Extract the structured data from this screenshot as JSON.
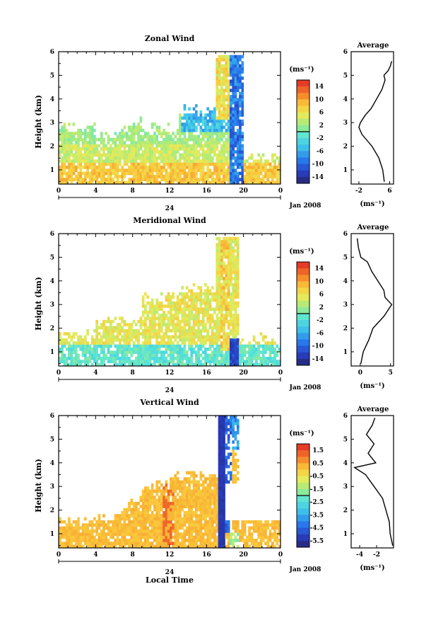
{
  "panels": [
    {
      "title": "Zonal Wind",
      "profile_title": "Average",
      "ylabel": "Height (km)",
      "units": "(ms⁻¹)",
      "date_label": "Jan 2008",
      "day_label": "24",
      "x_ticks": [
        "0",
        "4",
        "8",
        "12",
        "16",
        "20",
        "0"
      ],
      "y_ticks": [
        "1",
        "2",
        "3",
        "4",
        "5",
        "6"
      ],
      "colorbar_labels": [
        "14",
        "10",
        "6",
        "2",
        "-2",
        "-6",
        "-10",
        "-14"
      ],
      "profile_x_ticks": [
        "-2",
        "6"
      ]
    },
    {
      "title": "Meridional Wind",
      "profile_title": "Average",
      "ylabel": "Height (km)",
      "units": "(ms⁻¹)",
      "date_label": "Jan 2008",
      "day_label": "24",
      "x_ticks": [
        "0",
        "4",
        "8",
        "12",
        "16",
        "20",
        "0"
      ],
      "y_ticks": [
        "1",
        "2",
        "3",
        "4",
        "5",
        "6"
      ],
      "colorbar_labels": [
        "14",
        "10",
        "6",
        "2",
        "-2",
        "-6",
        "-10",
        "-14"
      ],
      "profile_x_ticks": [
        "0",
        "5"
      ]
    },
    {
      "title": "Vertical Wind",
      "profile_title": "Average",
      "ylabel": "Height (km)",
      "units": "(ms⁻¹)",
      "date_label": "Jan 2008",
      "day_label": "24",
      "x_ticks": [
        "0",
        "4",
        "8",
        "12",
        "16",
        "20",
        "0"
      ],
      "y_ticks": [
        "1",
        "2",
        "3",
        "4",
        "5",
        "6"
      ],
      "colorbar_labels": [
        "1.5",
        "0.5",
        "-0.5",
        "-1.5",
        "-2.5",
        "-3.5",
        "-4.5",
        "-5.5"
      ],
      "profile_x_ticks": [
        "-4",
        "-2"
      ],
      "xlabel": "Local Time"
    }
  ],
  "chart_data": [
    {
      "type": "heatmap",
      "title": "Zonal Wind",
      "xlabel": "",
      "ylabel": "Height (km)",
      "xlim": [
        0,
        24
      ],
      "ylim": [
        0.4,
        6
      ],
      "colorbar_range": [
        -16,
        16
      ],
      "colorbar_step": 4,
      "profile": {
        "title": "Average",
        "xlim": [
          -4,
          7
        ],
        "height": [
          0.5,
          1.0,
          1.5,
          2.0,
          2.5,
          2.8,
          3.0,
          3.3,
          3.6,
          4.0,
          4.4,
          4.8,
          5.0,
          5.2,
          5.4,
          5.6
        ],
        "value": [
          4.6,
          4.2,
          3.2,
          1.4,
          -1.2,
          -2.0,
          -1.6,
          -0.4,
          1.2,
          2.6,
          4.0,
          4.8,
          4.5,
          5.6,
          6.2,
          6.5
        ]
      }
    },
    {
      "type": "heatmap",
      "title": "Meridional Wind",
      "xlabel": "",
      "ylabel": "Height (km)",
      "xlim": [
        0,
        24
      ],
      "ylim": [
        0.4,
        6
      ],
      "colorbar_range": [
        -16,
        16
      ],
      "colorbar_step": 4,
      "profile": {
        "title": "Average",
        "xlim": [
          -1.5,
          5.5
        ],
        "height": [
          0.5,
          1.0,
          1.5,
          2.0,
          2.5,
          3.0,
          3.3,
          3.6,
          4.0,
          4.4,
          4.8,
          5.0,
          5.4,
          5.8
        ],
        "value": [
          0.1,
          0.5,
          1.4,
          2.1,
          3.9,
          5.2,
          4.1,
          3.9,
          2.9,
          1.9,
          1.2,
          0.1,
          -0.3,
          -0.5
        ]
      }
    },
    {
      "type": "heatmap",
      "title": "Vertical Wind",
      "xlabel": "Local Time",
      "ylabel": "Height (km)",
      "xlim": [
        0,
        24
      ],
      "ylim": [
        0.4,
        6
      ],
      "colorbar_range": [
        -6,
        2
      ],
      "colorbar_step": 1,
      "profile": {
        "title": "Average",
        "xlim": [
          -5,
          0
        ],
        "height": [
          0.5,
          1.0,
          1.5,
          2.0,
          2.5,
          3.0,
          3.5,
          3.8,
          4.0,
          4.4,
          4.8,
          5.2,
          5.6,
          5.9
        ],
        "value": [
          -0.1,
          -0.4,
          -0.5,
          -0.9,
          -1.3,
          -2.3,
          -3.3,
          -4.6,
          -2.1,
          -3.0,
          -2.3,
          -3.2,
          -2.5,
          -2.2
        ]
      }
    }
  ]
}
